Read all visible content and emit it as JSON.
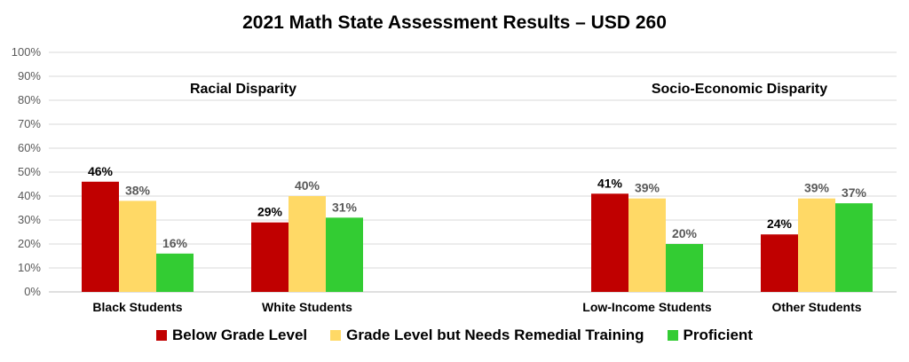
{
  "chart_data": {
    "type": "bar",
    "title": "2021 Math State Assessment Results – USD 260",
    "categories": [
      "Black Students",
      "White Students",
      "Low-Income Students",
      "Other Students"
    ],
    "groups": [
      {
        "label": "Racial Disparity",
        "categories": [
          "Black Students",
          "White Students"
        ]
      },
      {
        "label": "Socio-Economic Disparity",
        "categories": [
          "Low-Income Students",
          "Other Students"
        ]
      }
    ],
    "series": [
      {
        "name": "Below Grade Level",
        "color": "#C00000",
        "values": [
          46,
          29,
          41,
          24
        ]
      },
      {
        "name": "Grade Level but Needs Remedial Training",
        "color": "#FFD966",
        "values": [
          38,
          40,
          39,
          39
        ]
      },
      {
        "name": "Proficient",
        "color": "#33CC33",
        "values": [
          16,
          31,
          20,
          37
        ]
      }
    ],
    "y_ticks": [
      "0%",
      "10%",
      "20%",
      "30%",
      "40%",
      "50%",
      "60%",
      "70%",
      "80%",
      "90%",
      "100%"
    ],
    "ylim": [
      0,
      100
    ],
    "value_suffix": "%",
    "grid": true,
    "legend_position": "bottom"
  }
}
